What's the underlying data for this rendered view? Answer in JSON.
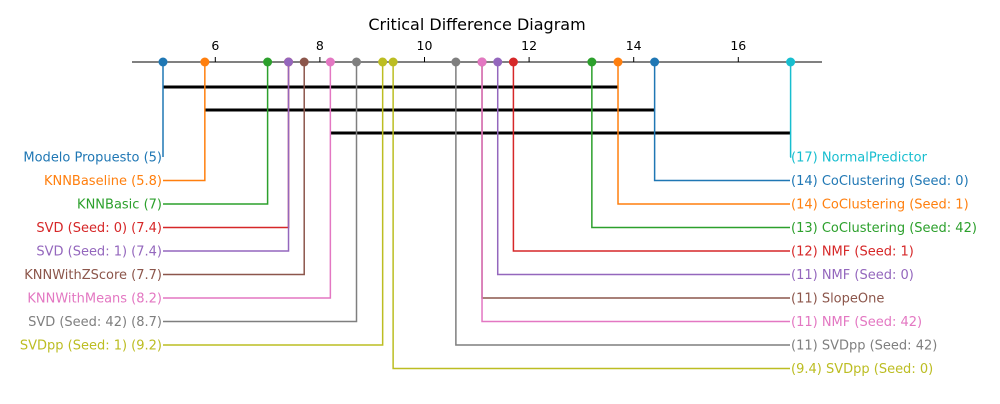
{
  "chart_data": {
    "type": "critical-difference-diagram",
    "title": "Critical Difference Diagram",
    "axis": {
      "range": [
        5,
        17
      ],
      "ticks": [
        6,
        8,
        10,
        12,
        14,
        16
      ],
      "tick_labels": [
        "6",
        "8",
        "10",
        "12",
        "14",
        "16"
      ]
    },
    "methods": [
      {
        "name": "Modelo Propuesto",
        "rank": 5.0,
        "rank_label": "5",
        "side": "left",
        "color": "#1f77b4"
      },
      {
        "name": "KNNBaseline",
        "rank": 5.8,
        "rank_label": "5.8",
        "side": "left",
        "color": "#ff7f0e"
      },
      {
        "name": "KNNBasic",
        "rank": 7.0,
        "rank_label": "7",
        "side": "left",
        "color": "#2ca02c"
      },
      {
        "name": "SVD (Seed: 0)",
        "rank": 7.4,
        "rank_label": "7.4",
        "side": "left",
        "color": "#d62728"
      },
      {
        "name": "SVD (Seed: 1)",
        "rank": 7.4,
        "rank_label": "7.4",
        "side": "left",
        "color": "#9467bd"
      },
      {
        "name": "KNNWithZScore",
        "rank": 7.7,
        "rank_label": "7.7",
        "side": "left",
        "color": "#8c564b"
      },
      {
        "name": "KNNWithMeans",
        "rank": 8.2,
        "rank_label": "8.2",
        "side": "left",
        "color": "#e377c2"
      },
      {
        "name": "SVD (Seed: 42)",
        "rank": 8.7,
        "rank_label": "8.7",
        "side": "left",
        "color": "#7f7f7f"
      },
      {
        "name": "SVDpp (Seed: 1)",
        "rank": 9.2,
        "rank_label": "9.2",
        "side": "left",
        "color": "#bcbd22"
      },
      {
        "name": "NormalPredictor",
        "rank": 17.0,
        "rank_label": "17",
        "side": "right",
        "color": "#17becf"
      },
      {
        "name": "CoClustering (Seed: 0)",
        "rank": 14.4,
        "rank_label": "14",
        "side": "right",
        "color": "#1f77b4"
      },
      {
        "name": "CoClustering (Seed: 1)",
        "rank": 13.7,
        "rank_label": "14",
        "side": "right",
        "color": "#ff7f0e"
      },
      {
        "name": "CoClustering (Seed: 42)",
        "rank": 13.2,
        "rank_label": "13",
        "side": "right",
        "color": "#2ca02c"
      },
      {
        "name": "NMF (Seed: 1)",
        "rank": 11.7,
        "rank_label": "12",
        "side": "right",
        "color": "#d62728"
      },
      {
        "name": "NMF (Seed: 0)",
        "rank": 11.4,
        "rank_label": "11",
        "side": "right",
        "color": "#9467bd"
      },
      {
        "name": "SlopeOne",
        "rank": 11.1,
        "rank_label": "11",
        "side": "right",
        "color": "#8c564b"
      },
      {
        "name": "NMF (Seed: 42)",
        "rank": 11.1,
        "rank_label": "11",
        "side": "right",
        "color": "#e377c2"
      },
      {
        "name": "SVDpp (Seed: 42)",
        "rank": 10.6,
        "rank_label": "11",
        "side": "right",
        "color": "#7f7f7f"
      },
      {
        "name": "SVDpp (Seed: 0)",
        "rank": 9.4,
        "rank_label": "9.4",
        "side": "right",
        "color": "#bcbd22"
      }
    ],
    "cliques": [
      {
        "from_rank": 5.0,
        "to_rank": 13.7
      },
      {
        "from_rank": 5.8,
        "to_rank": 14.4
      },
      {
        "from_rank": 8.2,
        "to_rank": 17.0
      }
    ]
  }
}
